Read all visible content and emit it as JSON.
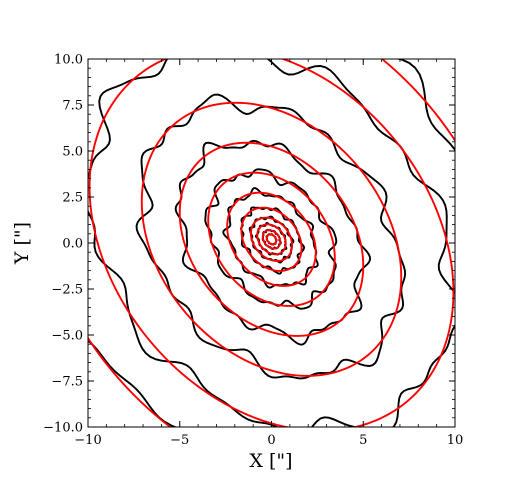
{
  "chart_data": {
    "type": "contour",
    "xlabel": "X [\"]",
    "ylabel": "Y [\"]",
    "xlim": [
      -10,
      10
    ],
    "ylim": [
      -10,
      10
    ],
    "xticks": [
      -10,
      -5,
      0,
      5,
      10
    ],
    "yticks": [
      -10.0,
      -7.5,
      -5.0,
      -2.5,
      0.0,
      2.5,
      5.0,
      7.5,
      10.0
    ],
    "xtick_labels": [
      "−10",
      "−5",
      "0",
      "5",
      "10"
    ],
    "ytick_labels": [
      "−10.0",
      "−7.5",
      "−5.0",
      "−2.5",
      "0.0",
      "2.5",
      "5.0",
      "7.5",
      "10.0"
    ],
    "grid": false,
    "legend": "none",
    "center": [
      0.0,
      0.2
    ],
    "ellipse_orientation_deg": -50,
    "axis_ratio": 0.75,
    "semi_major_axes": [
      0.3,
      0.55,
      0.9,
      1.3,
      1.9,
      2.8,
      4.0,
      5.8,
      8.2,
      11.5,
      15.0
    ],
    "series": [
      {
        "name": "",
        "kind": "isophote contours",
        "color": "#000000"
      },
      {
        "name": "",
        "kind": "ellipse fits",
        "color": "#ff0000"
      }
    ]
  }
}
